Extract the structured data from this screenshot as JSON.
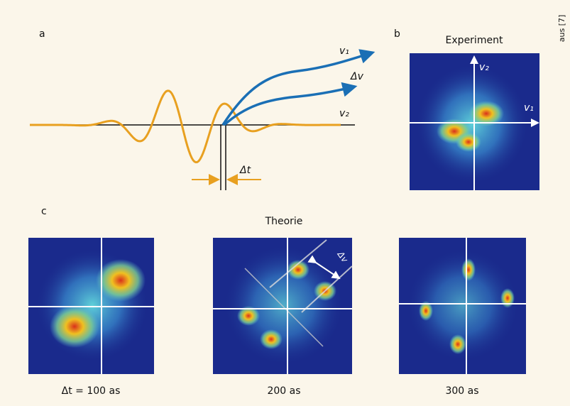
{
  "panel_a": {
    "label": "a",
    "v1": "v₁",
    "delta_v": "Δv",
    "v2": "v₂",
    "delta_t": "Δt"
  },
  "panel_b": {
    "label": "b",
    "title": "Experiment",
    "v2": "v₂",
    "v1": "v₁"
  },
  "panel_c": {
    "label": "c",
    "title": "Theorie",
    "delta_v": "Δv",
    "captions": [
      "Δt = 100 as",
      "200 as",
      "300 as"
    ]
  },
  "source": "aus [7]"
}
